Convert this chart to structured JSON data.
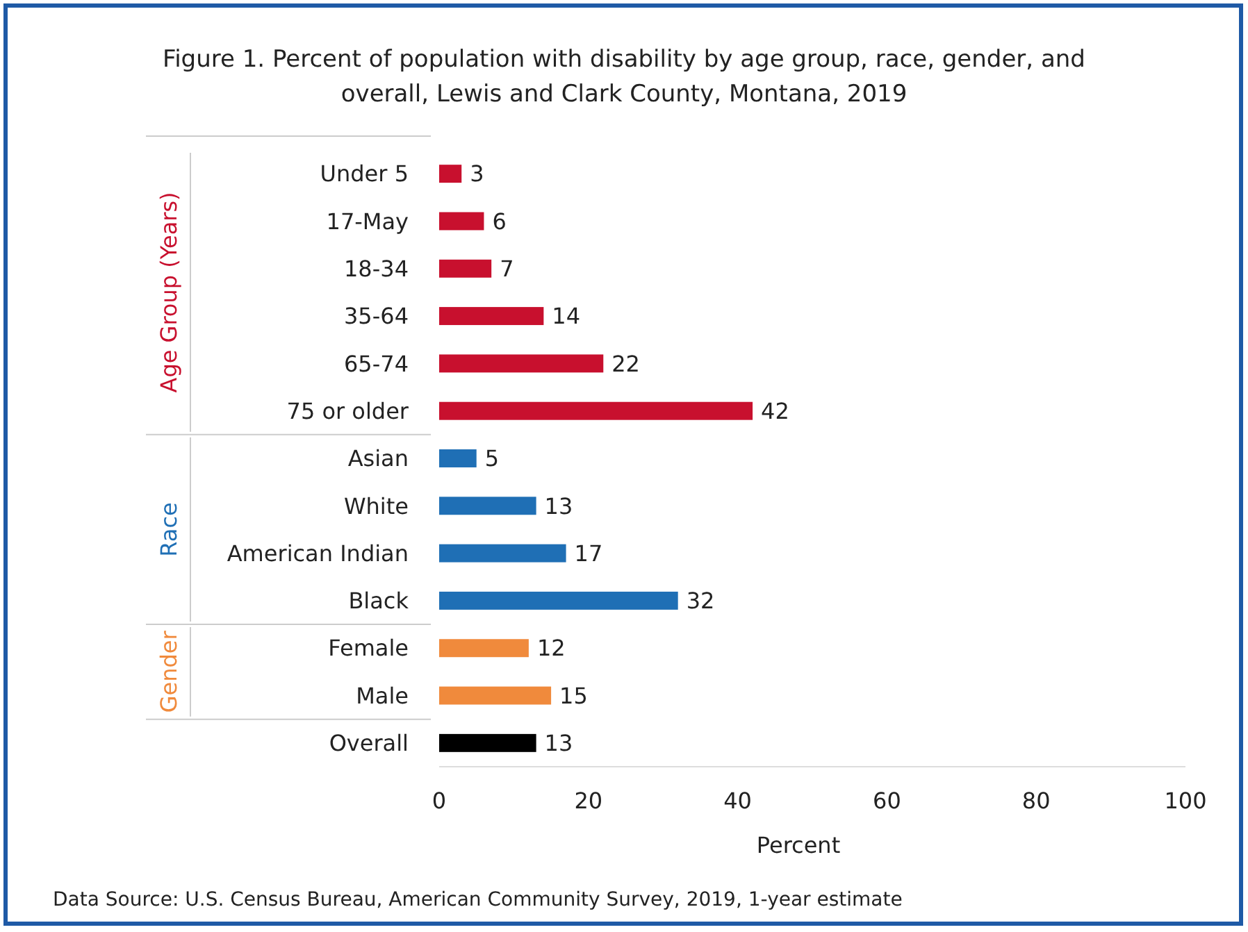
{
  "chart_data": {
    "type": "bar",
    "orientation": "horizontal",
    "title": "Figure 1. Percent of population with disability by age group, race, gender, and overall, Lewis and Clark County, Montana, 2019",
    "xlabel": "Percent",
    "categories": [
      "Under 5",
      "17-May",
      "18-34",
      "35-64",
      "65-74",
      "75 or older",
      "Asian",
      "White",
      "American Indian",
      "Black",
      "Female",
      "Male",
      "Overall"
    ],
    "series": [
      {
        "name": "Age Group (Years)",
        "color": "#c8102e",
        "values": [
          3,
          6,
          7,
          14,
          22,
          42,
          null,
          null,
          null,
          null,
          null,
          null,
          null
        ]
      },
      {
        "name": "Race",
        "color": "#1f6fb5",
        "values": [
          null,
          null,
          null,
          null,
          null,
          null,
          5,
          13,
          17,
          32,
          null,
          null,
          null
        ]
      },
      {
        "name": "Gender",
        "color": "#f08a3c",
        "values": [
          null,
          null,
          null,
          null,
          null,
          null,
          null,
          null,
          null,
          null,
          12,
          15,
          null
        ]
      },
      {
        "color": "#000000",
        "values": [
          null,
          null,
          null,
          null,
          null,
          null,
          null,
          null,
          null,
          null,
          null,
          null,
          13
        ]
      }
    ],
    "xlim": [
      0,
      100
    ],
    "xticks": [
      0,
      20,
      40,
      60,
      80,
      100
    ],
    "data_labels": true,
    "grid": false,
    "annotations": [
      "Data Source: U.S. Census Bureau, American Community Survey, 2019, 1-year estimate"
    ]
  }
}
